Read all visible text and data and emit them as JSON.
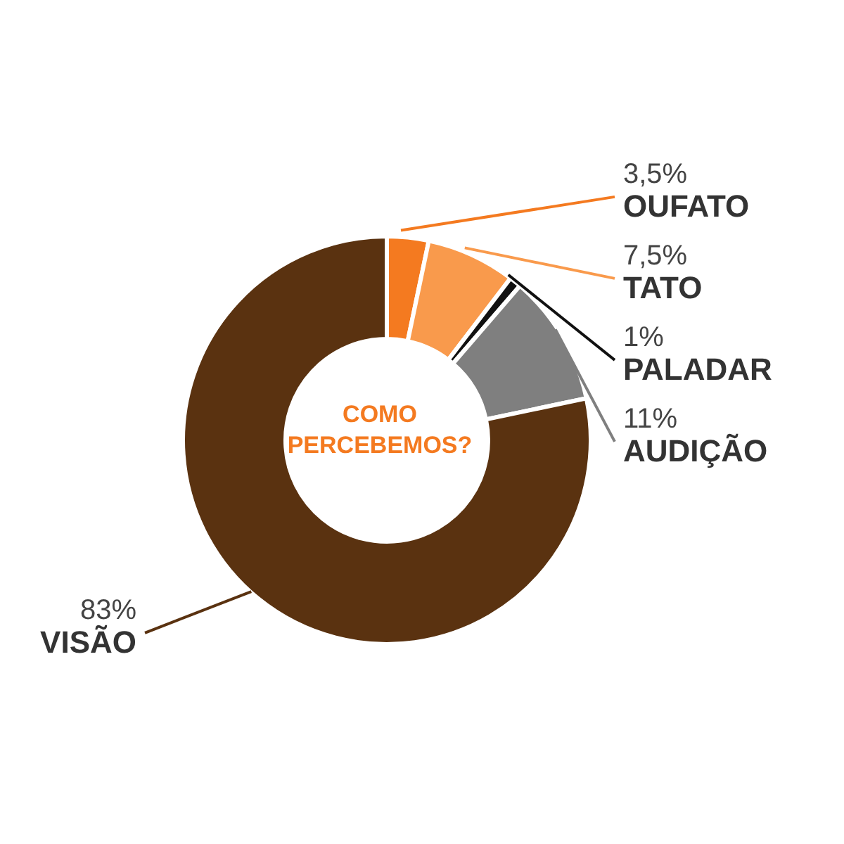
{
  "chart_data": {
    "type": "donut",
    "title": "COMO PERCEBEMOS?",
    "categories": [
      "OUFATO",
      "TATO",
      "PALADAR",
      "AUDIÇÃO",
      "VISÃO"
    ],
    "values": [
      3.5,
      7.5,
      1,
      11,
      83
    ],
    "value_labels": [
      "3,5%",
      "7,5%",
      "1%",
      "11%",
      "83%"
    ],
    "colors": [
      "#f47a20",
      "#f99a4c",
      "#111111",
      "#7f7f7f",
      "#5a3210"
    ],
    "legend": false
  }
}
